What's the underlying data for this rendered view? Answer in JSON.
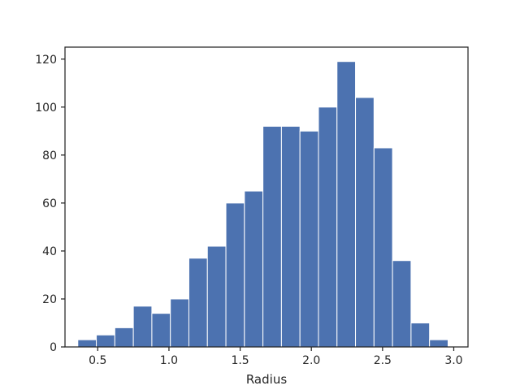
{
  "chart_data": {
    "type": "bar",
    "subtype": "histogram",
    "title": "",
    "xlabel": "Radius",
    "ylabel": "",
    "xlim": [
      0.27,
      3.1
    ],
    "ylim": [
      0,
      125
    ],
    "xticks": [
      0.5,
      1.0,
      1.5,
      2.0,
      2.5,
      3.0
    ],
    "xtick_labels": [
      "0.5",
      "1.0",
      "1.5",
      "2.0",
      "2.5",
      "3.0"
    ],
    "yticks": [
      0,
      20,
      40,
      60,
      80,
      100,
      120
    ],
    "ytick_labels": [
      "0",
      "20",
      "40",
      "60",
      "80",
      "100",
      "120"
    ],
    "bin_edges": [
      0.36,
      0.49,
      0.62,
      0.75,
      0.88,
      1.01,
      1.14,
      1.27,
      1.4,
      1.53,
      1.66,
      1.79,
      1.92,
      2.05,
      2.18,
      2.31,
      2.44,
      2.57,
      2.7,
      2.83,
      2.96
    ],
    "counts": [
      3,
      5,
      8,
      17,
      14,
      20,
      37,
      42,
      60,
      65,
      92,
      92,
      90,
      100,
      119,
      104,
      83,
      36,
      10,
      3
    ],
    "bar_color": "#4c72b0",
    "bar_edge_color": "#ffffff",
    "grid": false
  }
}
